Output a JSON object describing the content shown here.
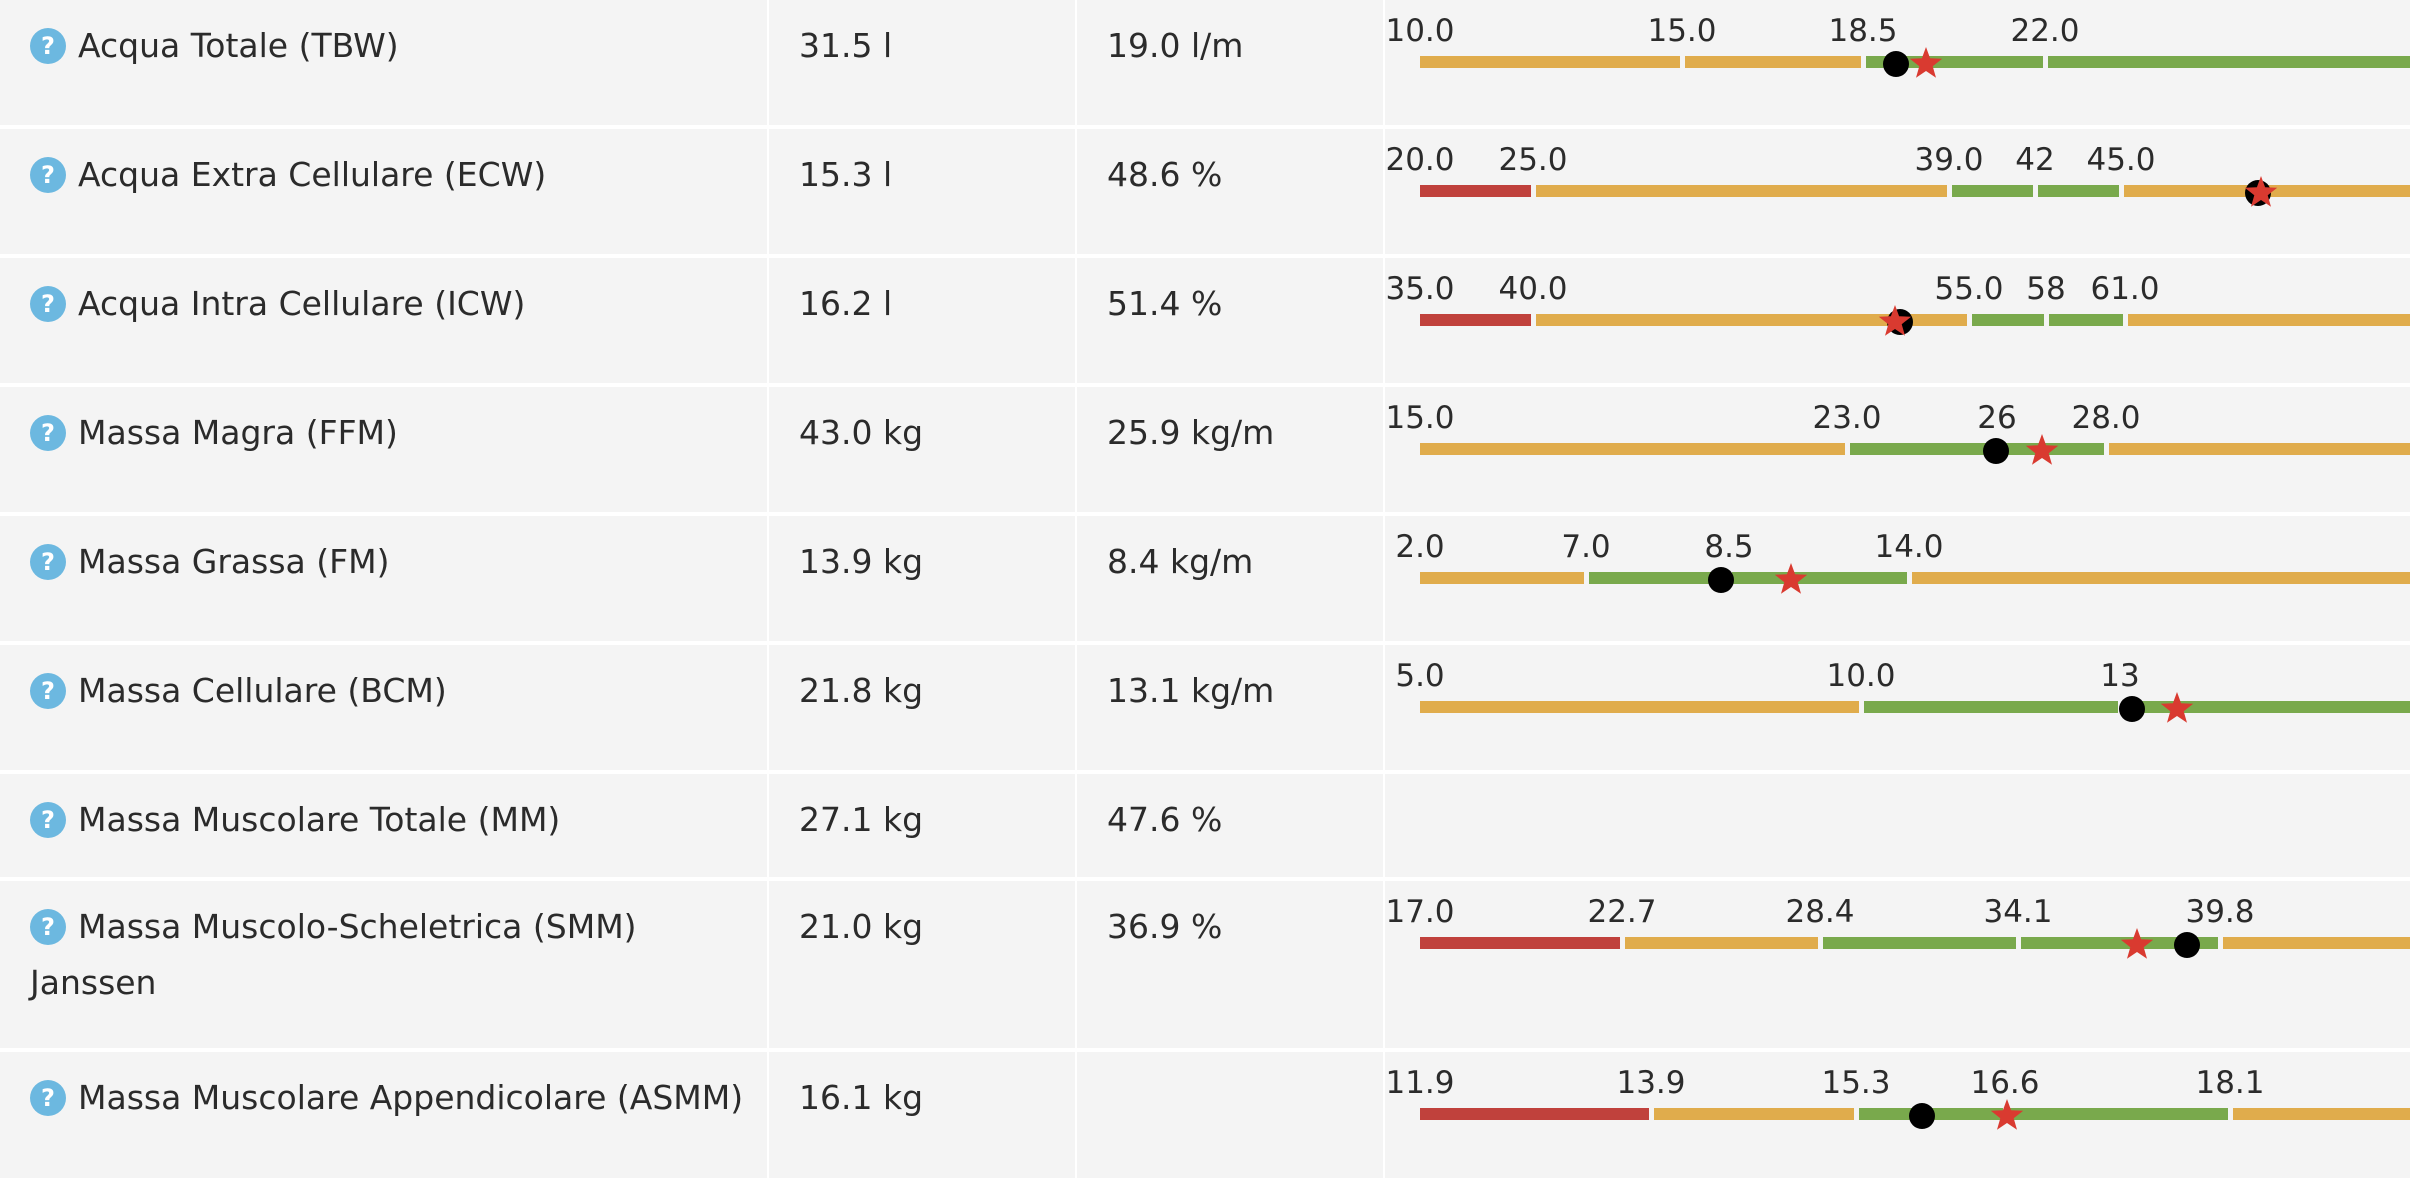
{
  "colors": {
    "red": "#c0413c",
    "orange": "#e0ac4c",
    "green": "#79a94c",
    "marker": "#000000",
    "star": "#d93a30",
    "help": "#6cb8e0"
  },
  "help_glyph": "?",
  "rows": [
    {
      "name": "Acqua Totale (TBW)",
      "name_cont": "",
      "value": "31.5 l",
      "index": "19.0 l/m",
      "gauge": {
        "ticks": [
          "10.0",
          "15.0",
          "18.5",
          "22.0"
        ],
        "bands": [
          "orange",
          "orange",
          "green",
          "green",
          "orange"
        ],
        "dot": 18.5,
        "star": 18.95
      }
    },
    {
      "name": "Acqua Extra Cellulare (ECW)",
      "name_cont": "",
      "value": "15.3 l",
      "index": "48.6 %",
      "gauge": {
        "ticks": [
          "20.0",
          "25.0",
          "39.0",
          "42",
          "45.0"
        ],
        "bands": [
          "red",
          "orange",
          "green",
          "green",
          "orange"
        ],
        "dot": 48.6,
        "star": 48.6
      }
    },
    {
      "name": "Acqua Intra Cellulare (ICW)",
      "name_cont": "",
      "value": "16.2 l",
      "index": "51.4 %",
      "gauge": {
        "ticks": [
          "35.0",
          "40.0",
          "55.0",
          "58",
          "61.0"
        ],
        "bands": [
          "red",
          "orange",
          "green",
          "green",
          "orange"
        ],
        "dot": 51.4,
        "star": 51.4
      }
    },
    {
      "name": "Massa Magra (FFM)",
      "name_cont": "",
      "value": "43.0 kg",
      "index": "25.9 kg/m",
      "gauge": {
        "ticks": [
          "15.0",
          "23.0",
          "26",
          "28.0"
        ],
        "bands": [
          "orange",
          "green",
          "green",
          "orange"
        ],
        "dot": 25.9,
        "star": 26.6
      }
    },
    {
      "name": "Massa Grassa (FM)",
      "name_cont": "",
      "value": "13.9 kg",
      "index": "8.4 kg/m",
      "gauge": {
        "ticks": [
          "2.0",
          "7.0",
          "8.5",
          "14.0"
        ],
        "bands": [
          "orange",
          "green",
          "green",
          "orange"
        ],
        "dot": 8.4,
        "star": 9.7
      }
    },
    {
      "name": "Massa Cellulare (BCM)",
      "name_cont": "",
      "value": "21.8 kg",
      "index": "13.1 kg/m",
      "gauge": {
        "ticks": [
          "5.0",
          "10.0",
          "13"
        ],
        "bands": [
          "orange",
          "green",
          "green"
        ],
        "dot": 13.1,
        "star": 13.6
      }
    },
    {
      "name": "Massa Muscolare Totale (MM)",
      "name_cont": "",
      "value": "27.1 kg",
      "index": "47.6 %",
      "gauge": null
    },
    {
      "name": "Massa Muscolo-Scheletrica (SMM)",
      "name_cont": "Janssen",
      "value": "21.0 kg",
      "index": "36.9 %",
      "gauge": {
        "ticks": [
          "17.0",
          "22.7",
          "28.4",
          "34.1",
          "39.8"
        ],
        "bands": [
          "red",
          "orange",
          "green",
          "green",
          "orange"
        ],
        "dot": 36.9,
        "star": 35.7
      }
    },
    {
      "name": "Massa Muscolare Appendicolare (ASMM)",
      "name_cont": "",
      "value": "16.1 kg",
      "index": "",
      "gauge": {
        "ticks": [
          "11.9",
          "13.9",
          "15.3",
          "16.6",
          "18.1"
        ],
        "bands": [
          "red",
          "orange",
          "green",
          "green",
          "orange"
        ],
        "dot": 16.1,
        "star": 16.7
      }
    }
  ]
}
